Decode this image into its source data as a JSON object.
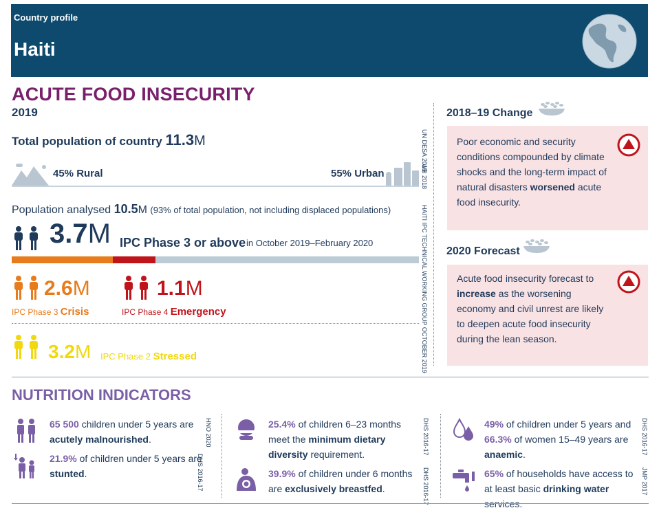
{
  "header": {
    "subtitle": "Country profile",
    "country": "Haiti"
  },
  "acute": {
    "title": "ACUTE FOOD INSECURITY",
    "year": "2019",
    "total_pop_label": "Total population of country",
    "total_pop_value": "11.3",
    "total_pop_unit": "M",
    "rural": "45% Rural",
    "urban": "55% Urban",
    "pop_analysed_label": "Population analysed",
    "pop_analysed_value": "10.5",
    "pop_analysed_unit": "M",
    "pop_analysed_note": "(93% of total population, not including displaced populations)",
    "phase3_value": "3.7",
    "phase3_unit": "M",
    "phase3_label": "IPC Phase 3 or above",
    "phase3_period": "in October 2019–February 2020",
    "bar": {
      "crisis_share": 0.2486,
      "emergency_share": 0.1051,
      "crisis_color": "#e87b1b",
      "emergency_color": "#c0141b",
      "rest_color": "#bccbd6"
    },
    "crisis_value": "2.6",
    "crisis_unit": "M",
    "crisis_phase": "IPC Phase 3",
    "crisis_name": "Crisis",
    "emergency_value": "1.1",
    "emergency_unit": "M",
    "emergency_phase": "IPC Phase 4",
    "emergency_name": "Emergency",
    "stressed_value": "3.2",
    "stressed_unit": "M",
    "stressed_phase": "IPC Phase 2",
    "stressed_name": "Stressed",
    "sources": {
      "undesa": "UN DESA 2019",
      "wb": "WB 2018",
      "ipc": "HAITI IPC TECHNICAL WORKING GROUP OCTOBER 2019"
    }
  },
  "change": {
    "heading": "2018–19 Change",
    "text_pre": "Poor economic and security conditions compounded by climate shocks and the long-term impact of natural disasters",
    "text_bold": "worsened",
    "text_post": "acute food insecurity."
  },
  "forecast": {
    "heading": "2020 Forecast",
    "text_pre": "Acute food insecurity forecast to",
    "text_bold": "increase",
    "text_post": "as the worsening economy and civil unrest are likely to deepen acute food insecurity during the lean season."
  },
  "nutrition": {
    "title": "NUTRITION INDICATORS",
    "items": [
      {
        "lead": "65 500",
        "pre": "children under 5 years are",
        "bold": "acutely malnourished",
        "post": ".",
        "source": "HNO 2020"
      },
      {
        "lead": "21.9%",
        "pre": "of children under 5 years are",
        "bold": "stunted",
        "post": ".",
        "source": "DHS 2016-17"
      },
      {
        "lead": "25.4%",
        "pre": "of children 6–23 months meet the",
        "bold": "minimum dietary diversity",
        "post": "requirement.",
        "source": "DHS 2016-17"
      },
      {
        "lead": "39.9%",
        "pre": "of children under 6 months are",
        "bold": "exclusively breastfed",
        "post": ".",
        "source": "DHS 2016-17"
      },
      {
        "lead": "49%",
        "pre": "of children under 5 years and",
        "lead2": "66.3%",
        "pre2": "of women 15–49 years are",
        "bold": "anaemic",
        "post": ".",
        "source": "DHS 2016-17"
      },
      {
        "lead": "65%",
        "pre": "of households have access to at least basic",
        "bold": "drinking water",
        "post": "services.",
        "source": "JMP 2017"
      }
    ]
  },
  "icons": {
    "globe": "globe-icon",
    "rural": "mountain-icon",
    "urban": "city-icon",
    "people": "people-icon",
    "bowl": "grain-bowl-icon",
    "up": "up-arrow-icon",
    "child": "child-icon",
    "feeding": "feeding-icon",
    "breastfeeding": "breastfeeding-icon",
    "drop": "blood-drop-icon",
    "tap": "water-tap-icon"
  },
  "colors": {
    "header": "#0e4a6e",
    "title_purple": "#7a1f6b",
    "nutrition_purple": "#7a5fa6",
    "crisis": "#e87b1b",
    "emergency": "#c0141b",
    "stressed": "#f1d80f",
    "pink_box": "#f9e2e4"
  }
}
